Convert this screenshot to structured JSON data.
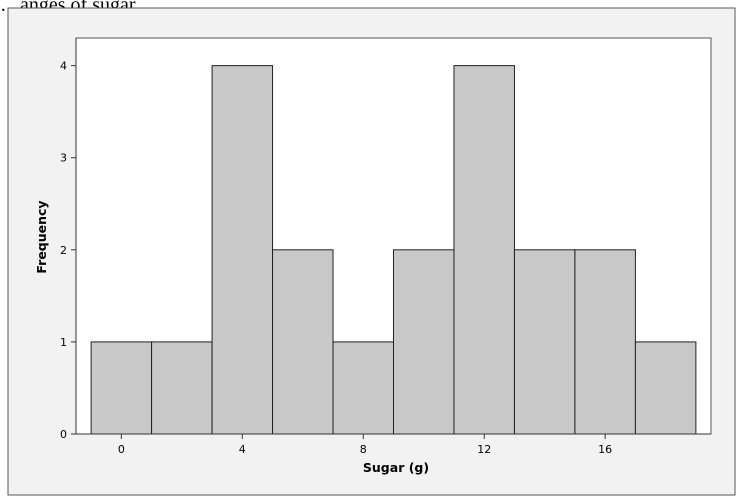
{
  "header_text": "…anges of sugar",
  "colors": {
    "bar_fill": "#c8c8c8",
    "bar_stroke": "#222222",
    "panel_background": "#f2f2f2",
    "plot_background": "#ffffff"
  },
  "chart_data": {
    "type": "bar",
    "xlabel": "Sugar (g)",
    "ylabel": "Frequency",
    "bin_width": 2,
    "bins": [
      {
        "center": 0,
        "frequency": 1
      },
      {
        "center": 2,
        "frequency": 1
      },
      {
        "center": 4,
        "frequency": 4
      },
      {
        "center": 6,
        "frequency": 2
      },
      {
        "center": 8,
        "frequency": 1
      },
      {
        "center": 10,
        "frequency": 2
      },
      {
        "center": 12,
        "frequency": 4
      },
      {
        "center": 14,
        "frequency": 2
      },
      {
        "center": 16,
        "frequency": 2
      },
      {
        "center": 18,
        "frequency": 1
      }
    ],
    "x_ticks": [
      "0",
      "4",
      "8",
      "12",
      "16"
    ],
    "y_ticks": [
      "0",
      "1",
      "2",
      "3",
      "4"
    ],
    "xlim": [
      -1.5,
      19.5
    ],
    "ylim": [
      0,
      4.3
    ],
    "grid": false,
    "legend": "none"
  }
}
